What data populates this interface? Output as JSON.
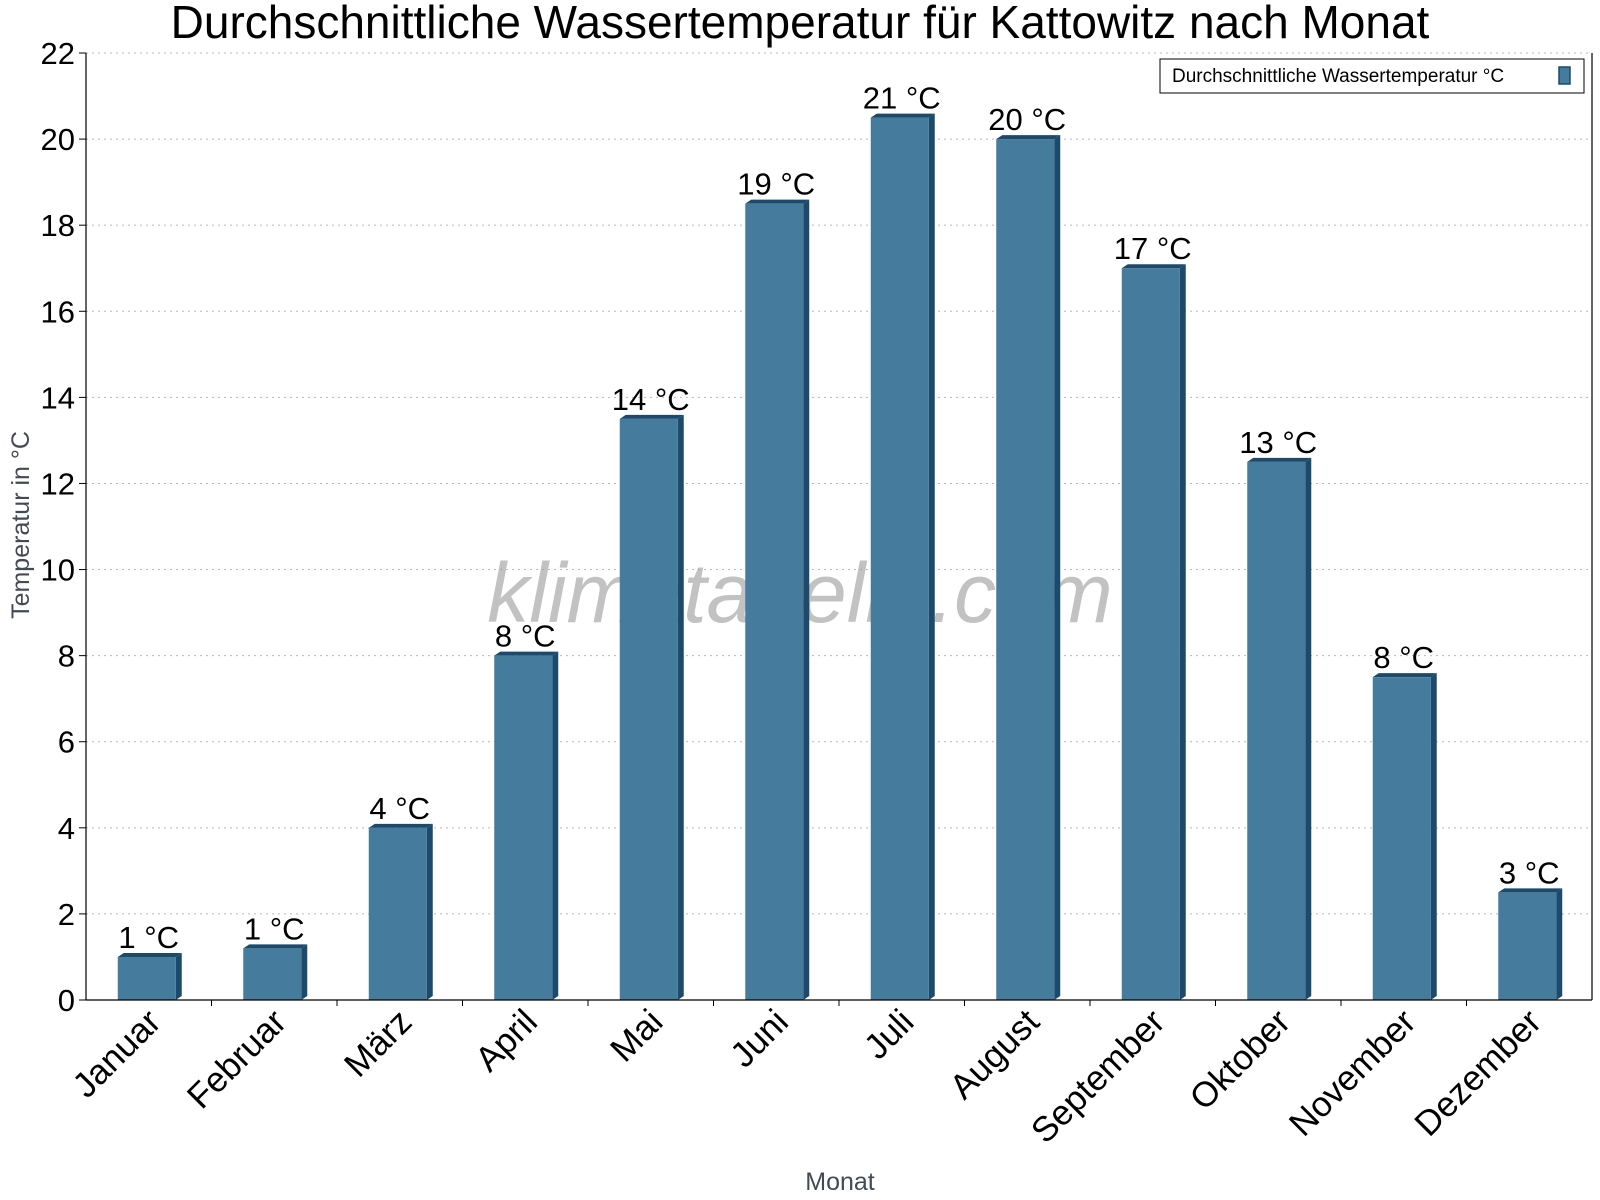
{
  "chart_data": {
    "type": "bar",
    "title": "Durchschnittliche Wassertemperatur für Kattowitz nach Monat",
    "xlabel": "Monat",
    "ylabel": "Temperatur in °C",
    "categories": [
      "Januar",
      "Februar",
      "März",
      "April",
      "Mai",
      "Juni",
      "Juli",
      "August",
      "September",
      "Oktober",
      "November",
      "Dezember"
    ],
    "series": [
      {
        "name": "Durchschnittliche Wassertemperatur °C",
        "color": "#457b9d",
        "values": [
          1,
          1.2,
          4,
          8,
          13.5,
          18.5,
          20.5,
          20,
          17,
          12.5,
          7.5,
          2.5
        ],
        "data_labels": [
          "1 °C",
          "1 °C",
          "4 °C",
          "8 °C",
          "14 °C",
          "19 °C",
          "21 °C",
          "20 °C",
          "17 °C",
          "13 °C",
          "8 °C",
          "3 °C"
        ]
      }
    ],
    "ylim": [
      0,
      22
    ],
    "yticks": [
      0,
      2,
      4,
      6,
      8,
      10,
      12,
      14,
      16,
      18,
      20,
      22
    ],
    "grid": true,
    "legend": "top-right",
    "watermark": "klimatabelle.com"
  }
}
